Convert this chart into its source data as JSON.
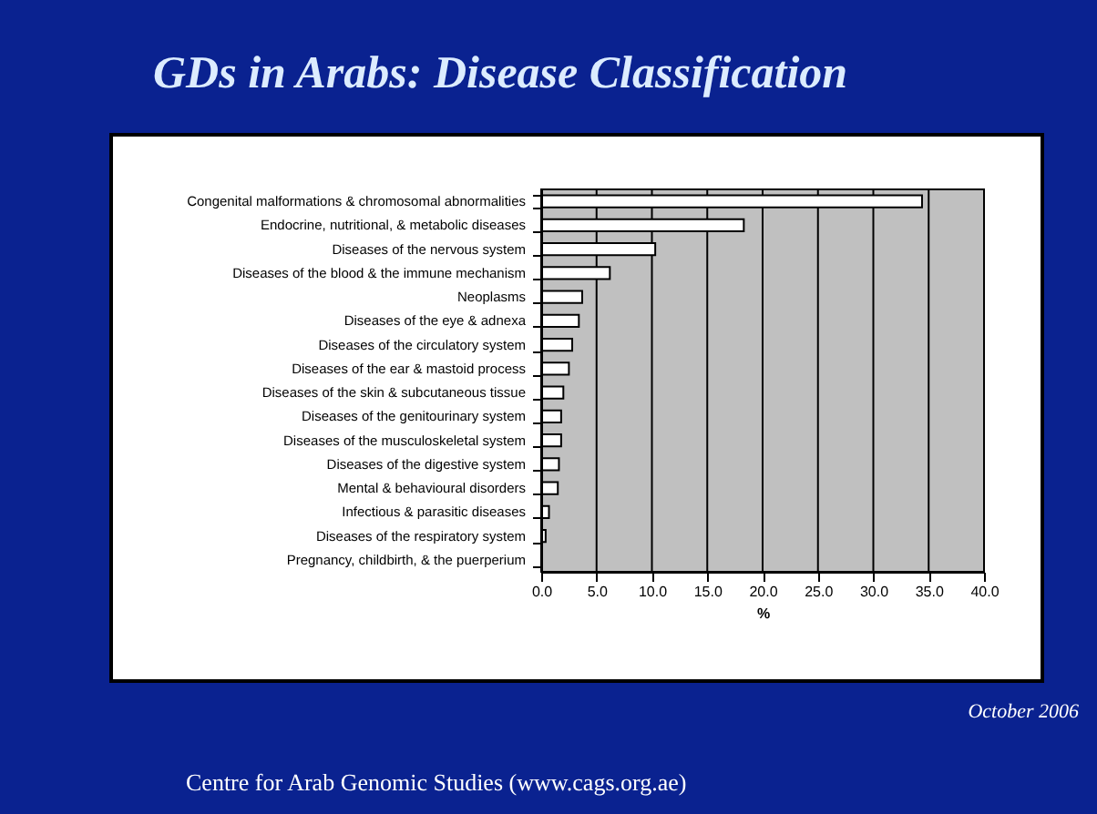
{
  "chart_data": {
    "type": "bar",
    "orientation": "horizontal",
    "title": "GDs in Arabs: Disease Classification",
    "categories": [
      "Congenital malformations & chromosomal abnormalities",
      "Endocrine, nutritional, & metabolic diseases",
      "Diseases of the nervous system",
      "Diseases of the blood & the immune mechanism",
      "Neoplasms",
      "Diseases of the eye & adnexa",
      "Diseases of the circulatory system",
      "Diseases of the ear & mastoid process",
      "Diseases of the skin & subcutaneous tissue",
      "Diseases of the genitourinary system",
      "Diseases of the musculoskeletal system",
      "Diseases of the digestive system",
      "Mental & behavioural disorders",
      "Infectious & parasitic diseases",
      "Diseases of the respiratory system",
      "Pregnancy, childbirth, & the puerperium"
    ],
    "values": [
      34.4,
      18.3,
      10.3,
      6.2,
      3.7,
      3.4,
      2.8,
      2.5,
      2.0,
      1.8,
      1.8,
      1.6,
      1.5,
      0.7,
      0.4,
      0
    ],
    "color": "#ffffff",
    "xlabel": "%",
    "xlim": [
      0,
      40
    ],
    "xticks": [
      {
        "value": 0,
        "label": "0.0"
      },
      {
        "value": 5,
        "label": "5.0"
      },
      {
        "value": 10,
        "label": "10.0"
      },
      {
        "value": 15,
        "label": "15.0"
      },
      {
        "value": 20,
        "label": "20.0"
      },
      {
        "value": 25,
        "label": "25.0"
      },
      {
        "value": 30,
        "label": "30.0"
      },
      {
        "value": 35,
        "label": "35.0"
      },
      {
        "value": 40,
        "label": "40.0"
      }
    ],
    "grid": "x",
    "annotations": [
      "October 2006",
      "Centre for Arab Genomic Studies (www.cags.org.ae)"
    ]
  }
}
